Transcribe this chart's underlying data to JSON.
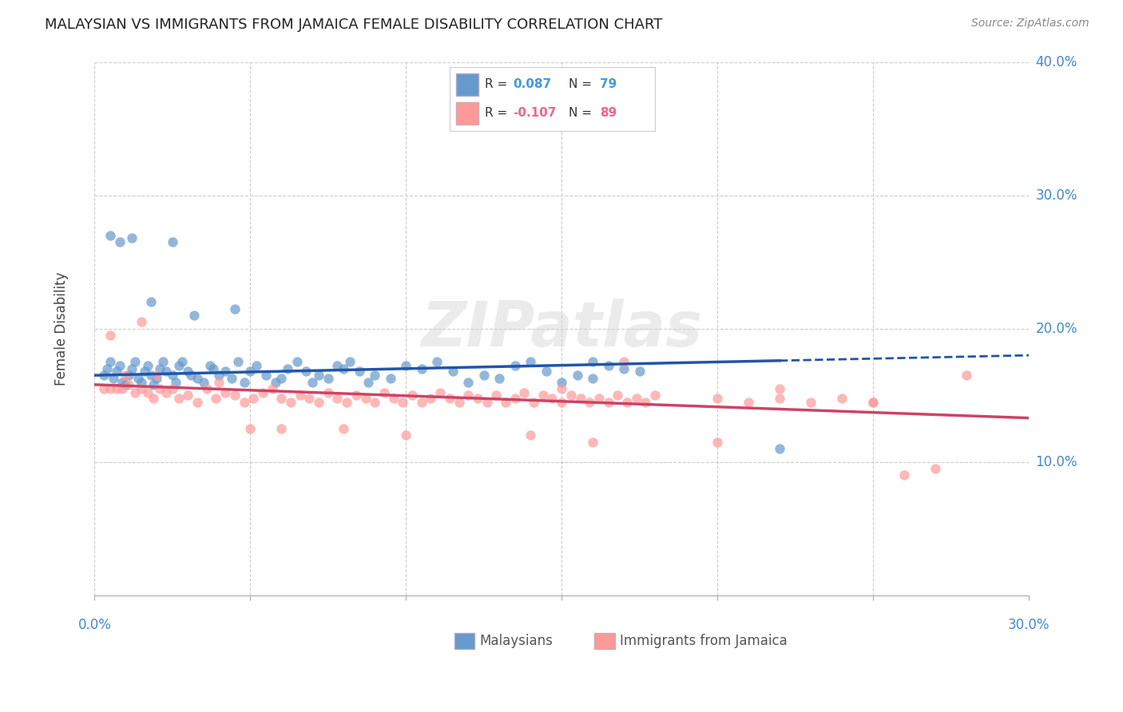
{
  "title": "MALAYSIAN VS IMMIGRANTS FROM JAMAICA FEMALE DISABILITY CORRELATION CHART",
  "source": "Source: ZipAtlas.com",
  "ylabel": "Female Disability",
  "xlim": [
    0.0,
    0.3
  ],
  "ylim": [
    0.0,
    0.4
  ],
  "ytick_values": [
    0.0,
    0.1,
    0.2,
    0.3,
    0.4
  ],
  "xtick_values": [
    0.0,
    0.05,
    0.1,
    0.15,
    0.2,
    0.25,
    0.3
  ],
  "blue_color": "#6699CC",
  "pink_color": "#FF9999",
  "line_blue": "#2255AA",
  "line_pink": "#CC4466",
  "watermark": "ZIPatlas",
  "blue_r": "0.087",
  "blue_n": "79",
  "pink_r": "-0.107",
  "pink_n": "89",
  "malaysians_x": [
    0.003,
    0.004,
    0.005,
    0.006,
    0.007,
    0.008,
    0.009,
    0.01,
    0.011,
    0.012,
    0.013,
    0.014,
    0.015,
    0.016,
    0.017,
    0.018,
    0.019,
    0.02,
    0.021,
    0.022,
    0.023,
    0.025,
    0.026,
    0.027,
    0.028,
    0.03,
    0.031,
    0.033,
    0.035,
    0.037,
    0.038,
    0.04,
    0.042,
    0.044,
    0.046,
    0.048,
    0.05,
    0.052,
    0.055,
    0.058,
    0.06,
    0.062,
    0.065,
    0.068,
    0.07,
    0.072,
    0.075,
    0.078,
    0.08,
    0.082,
    0.085,
    0.088,
    0.09,
    0.095,
    0.1,
    0.105,
    0.11,
    0.115,
    0.12,
    0.125,
    0.13,
    0.135,
    0.14,
    0.145,
    0.15,
    0.155,
    0.16,
    0.165,
    0.17,
    0.175,
    0.005,
    0.008,
    0.012,
    0.018,
    0.025,
    0.032,
    0.045,
    0.16,
    0.22
  ],
  "malaysians_y": [
    0.165,
    0.17,
    0.175,
    0.163,
    0.168,
    0.172,
    0.16,
    0.158,
    0.165,
    0.17,
    0.175,
    0.163,
    0.16,
    0.168,
    0.172,
    0.165,
    0.158,
    0.163,
    0.17,
    0.175,
    0.168,
    0.165,
    0.16,
    0.172,
    0.175,
    0.168,
    0.165,
    0.163,
    0.16,
    0.172,
    0.17,
    0.165,
    0.168,
    0.163,
    0.175,
    0.16,
    0.168,
    0.172,
    0.165,
    0.16,
    0.163,
    0.17,
    0.175,
    0.168,
    0.16,
    0.165,
    0.163,
    0.172,
    0.17,
    0.175,
    0.168,
    0.16,
    0.165,
    0.163,
    0.172,
    0.17,
    0.175,
    0.168,
    0.16,
    0.165,
    0.163,
    0.172,
    0.175,
    0.168,
    0.16,
    0.165,
    0.163,
    0.172,
    0.17,
    0.168,
    0.27,
    0.265,
    0.268,
    0.22,
    0.265,
    0.21,
    0.215,
    0.175,
    0.11
  ],
  "jamaica_x": [
    0.003,
    0.005,
    0.007,
    0.009,
    0.011,
    0.013,
    0.015,
    0.017,
    0.019,
    0.021,
    0.023,
    0.025,
    0.027,
    0.03,
    0.033,
    0.036,
    0.039,
    0.042,
    0.045,
    0.048,
    0.051,
    0.054,
    0.057,
    0.06,
    0.063,
    0.066,
    0.069,
    0.072,
    0.075,
    0.078,
    0.081,
    0.084,
    0.087,
    0.09,
    0.093,
    0.096,
    0.099,
    0.102,
    0.105,
    0.108,
    0.111,
    0.114,
    0.117,
    0.12,
    0.123,
    0.126,
    0.129,
    0.132,
    0.135,
    0.138,
    0.141,
    0.144,
    0.147,
    0.15,
    0.153,
    0.156,
    0.159,
    0.162,
    0.165,
    0.168,
    0.171,
    0.174,
    0.177,
    0.18,
    0.2,
    0.21,
    0.22,
    0.23,
    0.24,
    0.25,
    0.005,
    0.01,
    0.015,
    0.02,
    0.04,
    0.05,
    0.06,
    0.08,
    0.1,
    0.14,
    0.15,
    0.16,
    0.17,
    0.2,
    0.22,
    0.25,
    0.26,
    0.27,
    0.28
  ],
  "jamaica_y": [
    0.155,
    0.155,
    0.155,
    0.155,
    0.158,
    0.152,
    0.155,
    0.152,
    0.148,
    0.155,
    0.152,
    0.155,
    0.148,
    0.15,
    0.145,
    0.155,
    0.148,
    0.152,
    0.15,
    0.145,
    0.148,
    0.152,
    0.155,
    0.148,
    0.145,
    0.15,
    0.148,
    0.145,
    0.152,
    0.148,
    0.145,
    0.15,
    0.148,
    0.145,
    0.152,
    0.148,
    0.145,
    0.15,
    0.145,
    0.148,
    0.152,
    0.148,
    0.145,
    0.15,
    0.148,
    0.145,
    0.15,
    0.145,
    0.148,
    0.152,
    0.145,
    0.15,
    0.148,
    0.145,
    0.15,
    0.148,
    0.145,
    0.148,
    0.145,
    0.15,
    0.145,
    0.148,
    0.145,
    0.15,
    0.148,
    0.145,
    0.148,
    0.145,
    0.148,
    0.145,
    0.195,
    0.165,
    0.205,
    0.165,
    0.16,
    0.125,
    0.125,
    0.125,
    0.12,
    0.12,
    0.155,
    0.115,
    0.175,
    0.115,
    0.155,
    0.145,
    0.09,
    0.095,
    0.165
  ]
}
